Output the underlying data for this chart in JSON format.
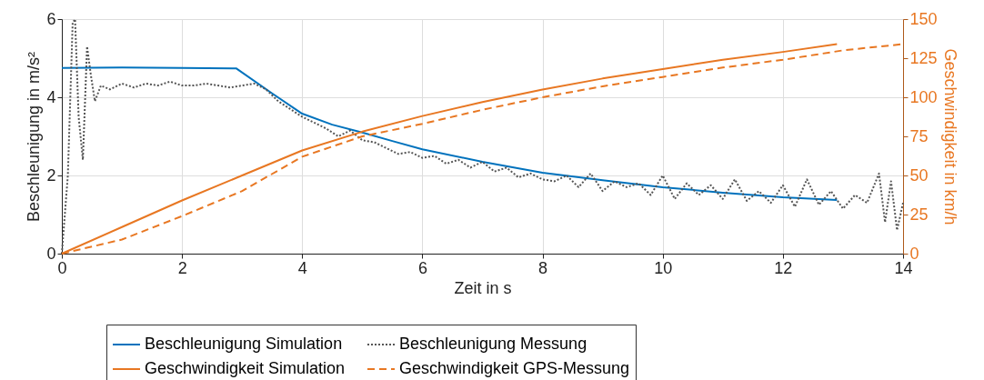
{
  "chart_data": {
    "type": "line",
    "xlabel": "Zeit in s",
    "ylabel": "Beschleunigung in m/s²",
    "y2label": "Geschwindigkeit in km/h",
    "xlim": [
      0,
      14
    ],
    "xticks": [
      0,
      2,
      4,
      6,
      8,
      10,
      12,
      14
    ],
    "ylim": [
      0,
      6
    ],
    "yticks": [
      0,
      2,
      4,
      6
    ],
    "y2lim": [
      0,
      150
    ],
    "y2ticks": [
      0,
      25,
      50,
      75,
      100,
      125,
      150
    ],
    "grid": true,
    "legend": "bottom",
    "marker": "none",
    "series": [
      {
        "name": "Beschleunigung Simulation",
        "color": "#0072bd",
        "line_style": "solid",
        "x": [
          0,
          1,
          2,
          2.9,
          3.5,
          4,
          4.5,
          5,
          5.5,
          6,
          7,
          8,
          9,
          10,
          11,
          12,
          12.9
        ],
        "values": [
          4.75,
          4.76,
          4.75,
          4.74,
          4.1,
          3.58,
          3.3,
          3.1,
          2.88,
          2.67,
          2.35,
          2.07,
          1.88,
          1.7,
          1.56,
          1.44,
          1.37
        ]
      },
      {
        "name": "Geschwindigkeit Simulation",
        "color": "#e87722",
        "line_style": "solid",
        "axis": "y2",
        "x": [
          0,
          1,
          2,
          3,
          4,
          5,
          6,
          7,
          8,
          9,
          10,
          11,
          12,
          12.9
        ],
        "values": [
          0,
          17,
          34,
          50,
          66,
          78,
          88,
          97,
          105,
          112,
          118,
          124,
          129,
          134
        ]
      },
      {
        "name": "Beschleunigung Messung",
        "color": "#555555",
        "line_style": "dotted",
        "x": [
          0,
          0.1,
          0.18,
          0.22,
          0.28,
          0.35,
          0.42,
          0.48,
          0.55,
          0.65,
          0.8,
          1,
          1.2,
          1.4,
          1.6,
          1.8,
          2,
          2.2,
          2.4,
          2.6,
          2.8,
          3,
          3.2,
          3.4,
          3.6,
          3.8,
          4,
          4.2,
          4.4,
          4.6,
          4.8,
          5,
          5.2,
          5.4,
          5.6,
          5.8,
          6,
          6.2,
          6.4,
          6.6,
          6.8,
          7,
          7.2,
          7.4,
          7.6,
          7.8,
          8,
          8.2,
          8.4,
          8.6,
          8.8,
          9,
          9.2,
          9.4,
          9.6,
          9.8,
          10,
          10.2,
          10.4,
          10.6,
          10.8,
          11,
          11.2,
          11.4,
          11.6,
          11.8,
          12,
          12.2,
          12.4,
          12.6,
          12.8,
          13,
          13.2,
          13.4,
          13.6,
          13.7,
          13.8,
          13.9,
          14
        ],
        "values": [
          0,
          2,
          5.9,
          6,
          3.5,
          2.4,
          5.3,
          4.6,
          3.9,
          4.3,
          4.2,
          4.35,
          4.25,
          4.35,
          4.3,
          4.4,
          4.3,
          4.3,
          4.35,
          4.3,
          4.25,
          4.3,
          4.35,
          4.2,
          3.9,
          3.7,
          3.5,
          3.35,
          3.2,
          3,
          3.15,
          2.9,
          2.85,
          2.7,
          2.55,
          2.6,
          2.45,
          2.5,
          2.3,
          2.4,
          2.2,
          2.35,
          2.1,
          2.2,
          1.95,
          2.05,
          1.9,
          1.85,
          2,
          1.7,
          2.05,
          1.6,
          1.85,
          1.7,
          1.8,
          1.5,
          2,
          1.4,
          1.8,
          1.5,
          1.75,
          1.4,
          1.9,
          1.35,
          1.6,
          1.3,
          1.75,
          1.2,
          1.9,
          1.25,
          1.6,
          1.15,
          1.5,
          1.3,
          2.05,
          0.8,
          1.85,
          0.6,
          1.3
        ]
      },
      {
        "name": "Geschwindigkeit GPS-Messung",
        "color": "#e87722",
        "line_style": "dashed",
        "axis": "y2",
        "x": [
          0,
          1,
          2,
          3,
          4,
          5,
          6,
          7,
          8,
          9,
          10,
          11,
          12,
          13,
          14
        ],
        "values": [
          0,
          9,
          24,
          40,
          62,
          75,
          83,
          92,
          100,
          107,
          113,
          119,
          124,
          130,
          134
        ]
      }
    ]
  }
}
